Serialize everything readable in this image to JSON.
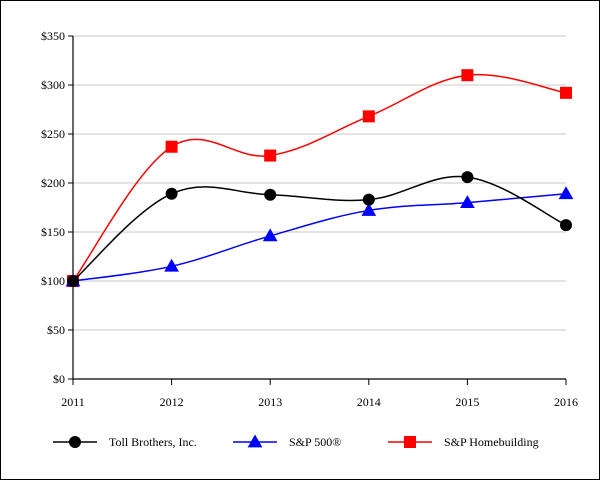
{
  "chart_data": {
    "type": "line",
    "title": "",
    "xlabel": "",
    "ylabel": "",
    "categories": [
      "2011",
      "2012",
      "2013",
      "2014",
      "2015",
      "2016"
    ],
    "ylim": [
      0,
      350
    ],
    "y_ticks": [
      0,
      50,
      100,
      150,
      200,
      250,
      300,
      350
    ],
    "y_tick_labels": [
      "$0",
      "$50",
      "$100",
      "$150",
      "$200",
      "$250",
      "$300",
      "$350"
    ],
    "grid": "horizontal",
    "legend_position": "bottom",
    "series": [
      {
        "name": "Toll Brothers, Inc.",
        "values": [
          100,
          189,
          188,
          183,
          206,
          157
        ],
        "color": "#000000",
        "marker": "circle"
      },
      {
        "name": "S&P 500®",
        "values": [
          100,
          115,
          146,
          172,
          180,
          189
        ],
        "color": "#0000ff",
        "marker": "triangle"
      },
      {
        "name": "S&P Homebuilding",
        "values": [
          100,
          237,
          228,
          268,
          310,
          292
        ],
        "color": "#ff0000",
        "marker": "square"
      }
    ]
  }
}
